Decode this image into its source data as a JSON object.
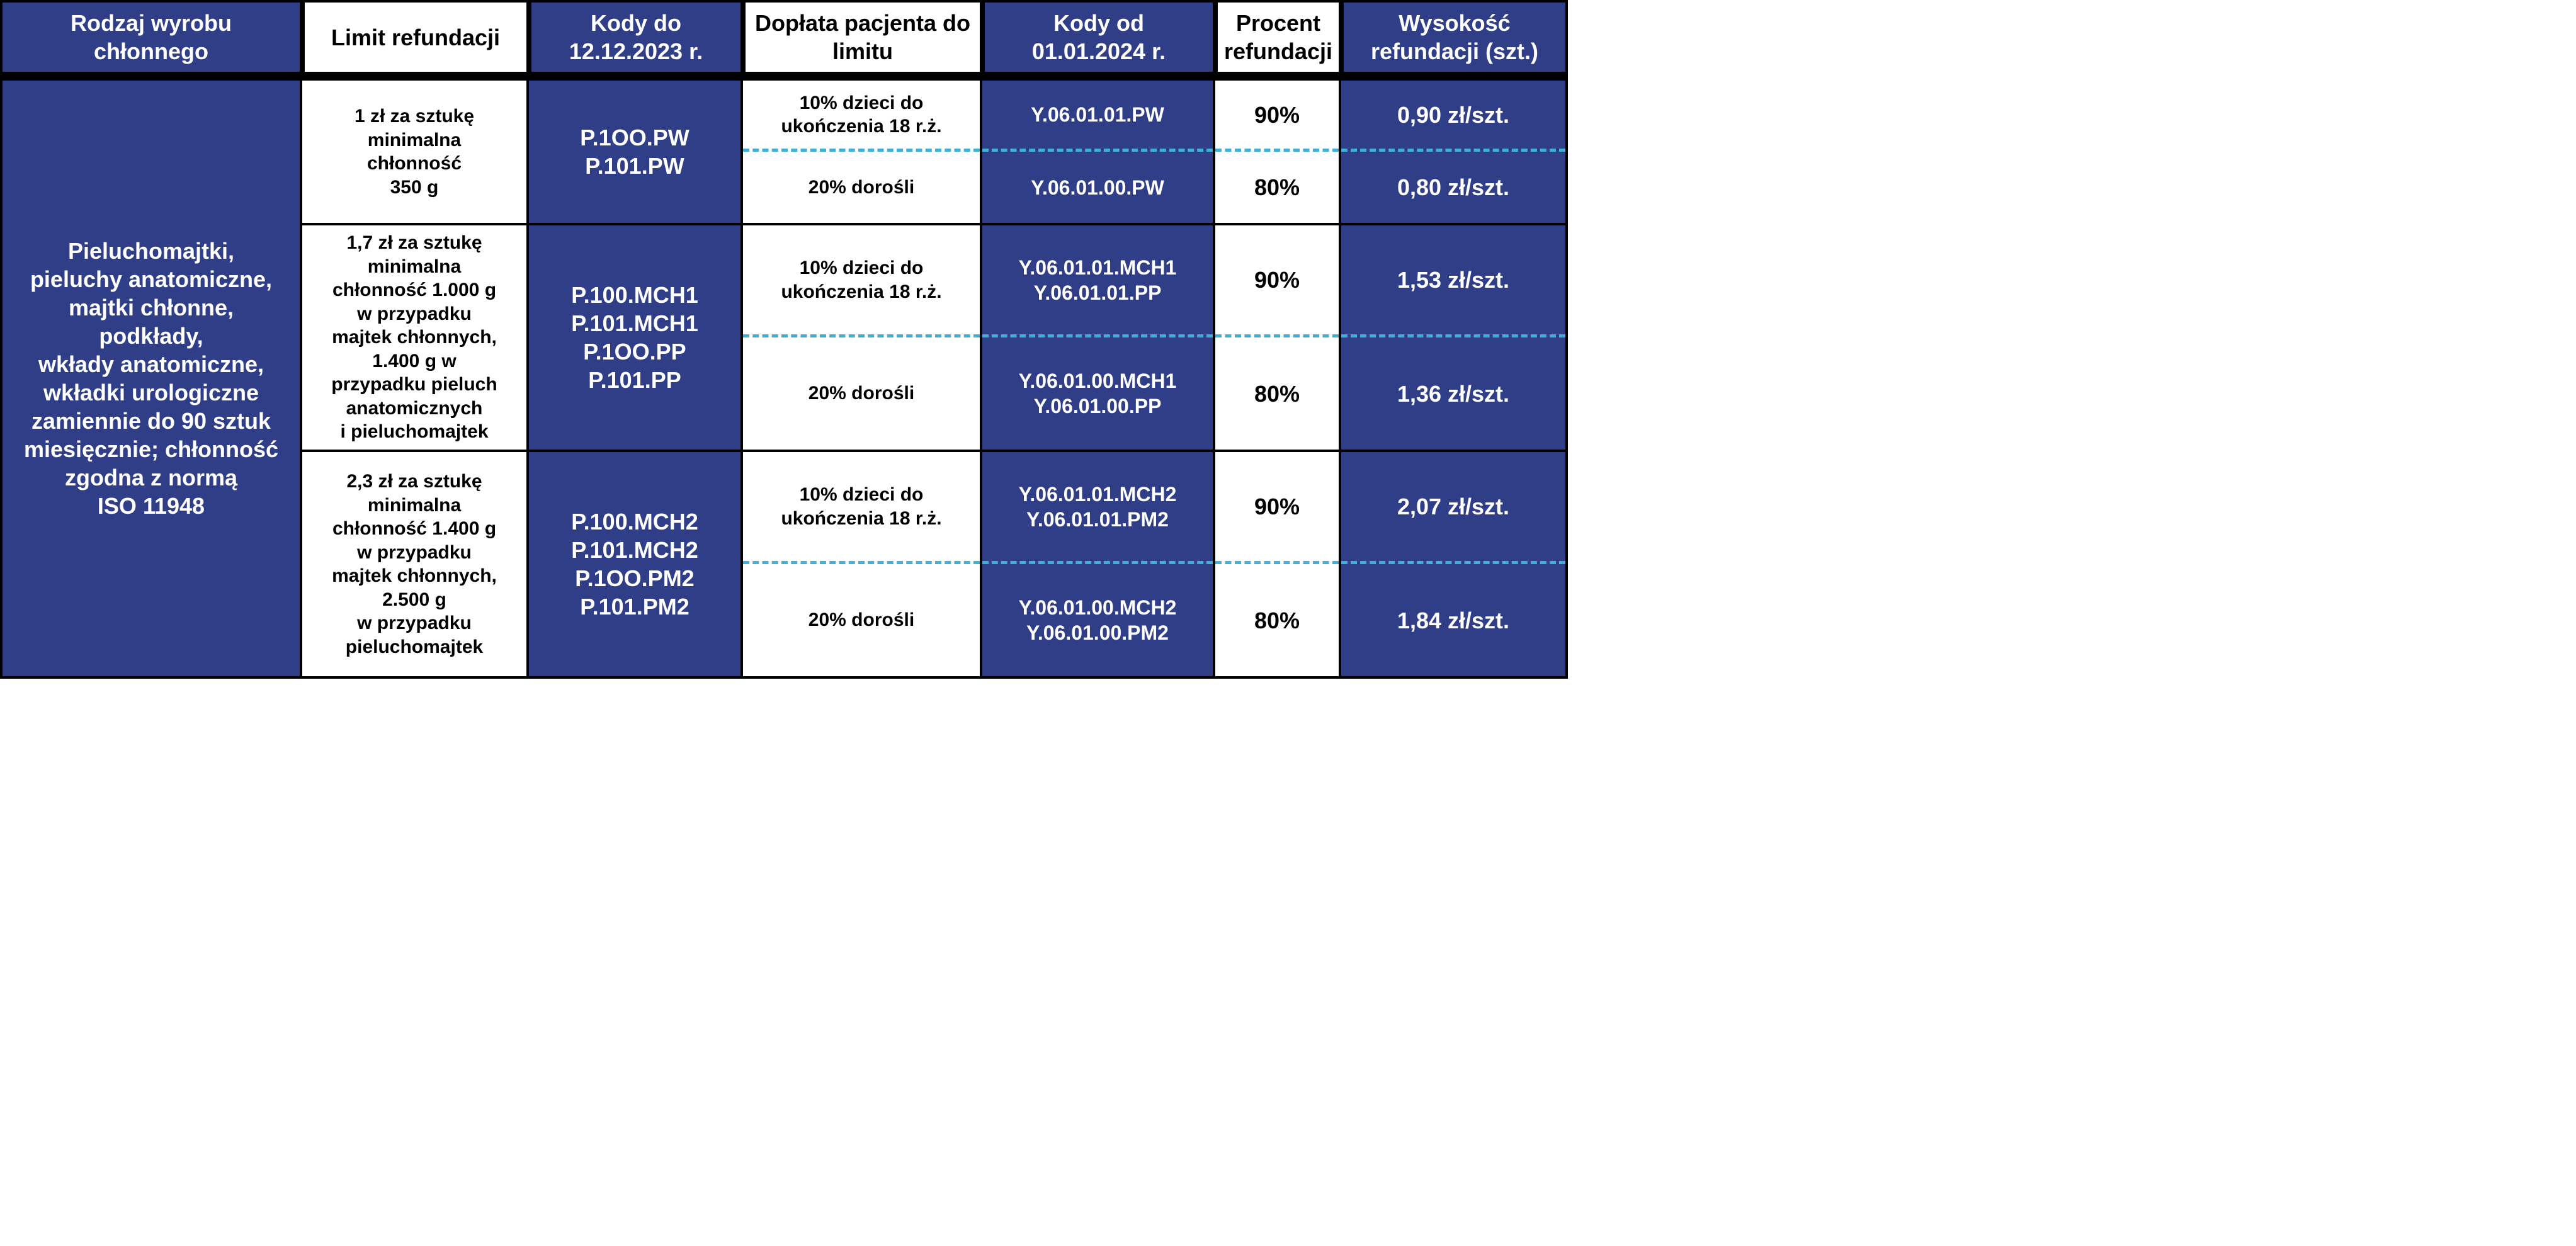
{
  "colors": {
    "blue": "#2f3e87",
    "white": "#ffffff",
    "black": "#000000",
    "dash": "#3fb1d6"
  },
  "headers": {
    "col1": "Rodzaj wyrobu chłonnego",
    "col2": "Limit refundacji",
    "col3": "Kody do 12.12.2023 r.",
    "col4": "Dopłata pacjenta do limitu",
    "col5": "Kody od 01.01.2024 r.",
    "col6": "Procent refundacji",
    "col7": "Wysokość refundacji (szt.)"
  },
  "left_label": "Pieluchomajtki,\npieluchy anatomiczne,\nmajtki chłonne,\npodkłady,\nwkłady anatomiczne,\nwkładki urologiczne\nzamiennie do 90 sztuk\nmiesięcznie; chłonność\nzgodna z normą\nISO 11948",
  "groups": [
    {
      "limit": "1 zł za sztukę\nminimalna\nchłonność\n350 g",
      "codes_old": "P.1OO.PW\nP.101.PW",
      "rows": [
        {
          "doplata": "10% dzieci do\nukończenia 18 r.ż.",
          "codes_new": "Y.06.01.01.PW",
          "procent": "90%",
          "wys": "0,90 zł/szt."
        },
        {
          "doplata": "20% dorośli",
          "codes_new": "Y.06.01.00.PW",
          "procent": "80%",
          "wys": "0,80 zł/szt."
        }
      ]
    },
    {
      "limit": "1,7 zł za sztukę\nminimalna\nchłonność 1.000 g\nw przypadku\nmajtek chłonnych,\n1.400 g w\nprzypadku pieluch\nanatomicznych\ni pieluchomajtek",
      "codes_old": "P.100.MCH1\nP.101.MCH1\nP.1OO.PP\nP.101.PP",
      "rows": [
        {
          "doplata": "10% dzieci do\nukończenia 18 r.ż.",
          "codes_new": "Y.06.01.01.MCH1\nY.06.01.01.PP",
          "procent": "90%",
          "wys": "1,53 zł/szt."
        },
        {
          "doplata": "20% dorośli",
          "codes_new": "Y.06.01.00.MCH1\nY.06.01.00.PP",
          "procent": "80%",
          "wys": "1,36 zł/szt."
        }
      ]
    },
    {
      "limit": "2,3 zł za sztukę\nminimalna\nchłonność 1.400 g\nw przypadku\nmajtek chłonnych,\n2.500 g\nw przypadku\npieluchomajtek",
      "codes_old": "P.100.MCH2\nP.101.MCH2\nP.1OO.PM2\nP.101.PM2",
      "rows": [
        {
          "doplata": "10% dzieci do\nukończenia 18 r.ż.",
          "codes_new": "Y.06.01.01.MCH2\nY.06.01.01.PM2",
          "procent": "90%",
          "wys": "2,07 zł/szt."
        },
        {
          "doplata": "20% dorośli",
          "codes_new": "Y.06.01.00.MCH2\nY.06.01.00.PM2",
          "procent": "80%",
          "wys": "1,84 zł/szt."
        }
      ]
    }
  ]
}
